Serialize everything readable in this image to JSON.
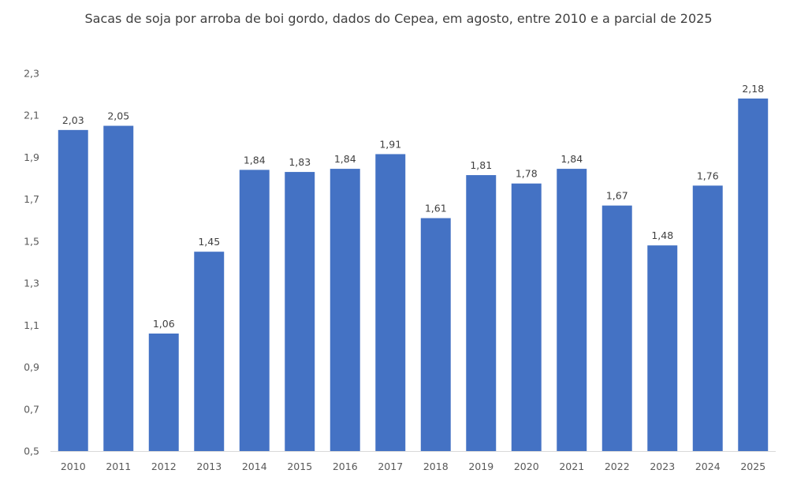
{
  "chart_data": {
    "type": "bar",
    "title": "Sacas de soja por arroba de boi gordo, dados do Cepea,  em agosto, entre 2010 e  a parcial de 2025",
    "xlabel": "",
    "ylabel": "",
    "ylim": [
      0.5,
      2.3
    ],
    "yticks": [
      "0,5",
      "0,7",
      "0,9",
      "1,1",
      "1,3",
      "1,5",
      "1,7",
      "1,9",
      "2,1",
      "2,3"
    ],
    "ytick_values": [
      0.5,
      0.7,
      0.9,
      1.1,
      1.3,
      1.5,
      1.7,
      1.9,
      2.1,
      2.3
    ],
    "grid": false,
    "bar_color": "#4472C4",
    "categories": [
      "2010",
      "2011",
      "2012",
      "2013",
      "2014",
      "2015",
      "2016",
      "2017",
      "2018",
      "2019",
      "2020",
      "2021",
      "2022",
      "2023",
      "2024",
      "2025"
    ],
    "values": [
      2.03,
      2.05,
      1.06,
      1.45,
      1.84,
      1.83,
      1.845,
      1.915,
      1.61,
      1.815,
      1.775,
      1.845,
      1.67,
      1.48,
      1.765,
      2.18
    ],
    "value_labels": [
      "2,03",
      "2,05",
      "1,06",
      "1,45",
      "1,84",
      "1,83",
      "1,84",
      "1,91",
      "1,61",
      "1,81",
      "1,78",
      "1,84",
      "1,67",
      "1,48",
      "1,76",
      "2,18"
    ]
  }
}
